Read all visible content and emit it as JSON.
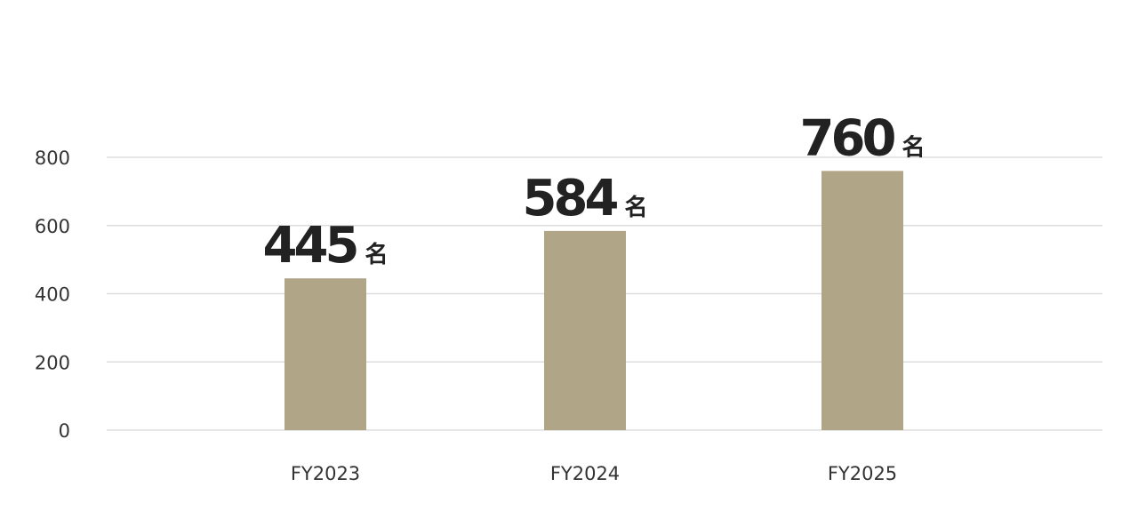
{
  "chart_data": {
    "type": "bar",
    "categories": [
      "FY2023",
      "FY2024",
      "FY2025"
    ],
    "values": [
      445,
      584,
      760
    ],
    "value_labels": [
      "445",
      "584",
      "760"
    ],
    "value_unit": "名",
    "title": "",
    "xlabel": "",
    "ylabel": "",
    "ylim": [
      0,
      800
    ],
    "yticks": [
      "0",
      "200",
      "400",
      "600",
      "800"
    ],
    "grid": true,
    "legend": "none",
    "bar_color": "#b0a586",
    "grid_color": "#dddddd"
  }
}
